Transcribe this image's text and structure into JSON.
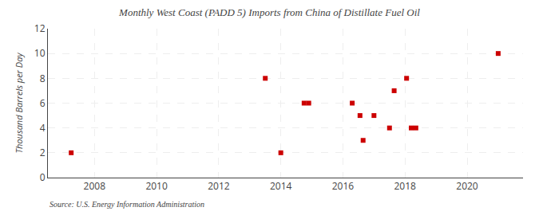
{
  "chart_data": {
    "type": "scatter",
    "title": "Monthly West Coast (PADD 5) Imports from China of Distillate Fuel Oil",
    "ylabel": "Thousand Barrels per Day",
    "annotations": [
      "Source: U.S. Energy Information Administration"
    ],
    "x": [
      2007.25,
      2013.5,
      2014.0,
      2014.75,
      2014.9,
      2016.3,
      2016.55,
      2016.65,
      2017.0,
      2017.5,
      2017.65,
      2018.05,
      2018.2,
      2018.35,
      2021.0
    ],
    "values": [
      2,
      8,
      2,
      6,
      6,
      6,
      5,
      3,
      5,
      4,
      7,
      8,
      4,
      4,
      10
    ],
    "color": "#cc0000",
    "marker": "square",
    "xlim": [
      2006.5,
      2021.8
    ],
    "ylim": [
      0,
      12
    ],
    "xticks": [
      2008,
      2010,
      2012,
      2014,
      2016,
      2018,
      2020
    ],
    "yticks": [
      0,
      2,
      4,
      6,
      8,
      10,
      12
    ],
    "grid": true
  }
}
